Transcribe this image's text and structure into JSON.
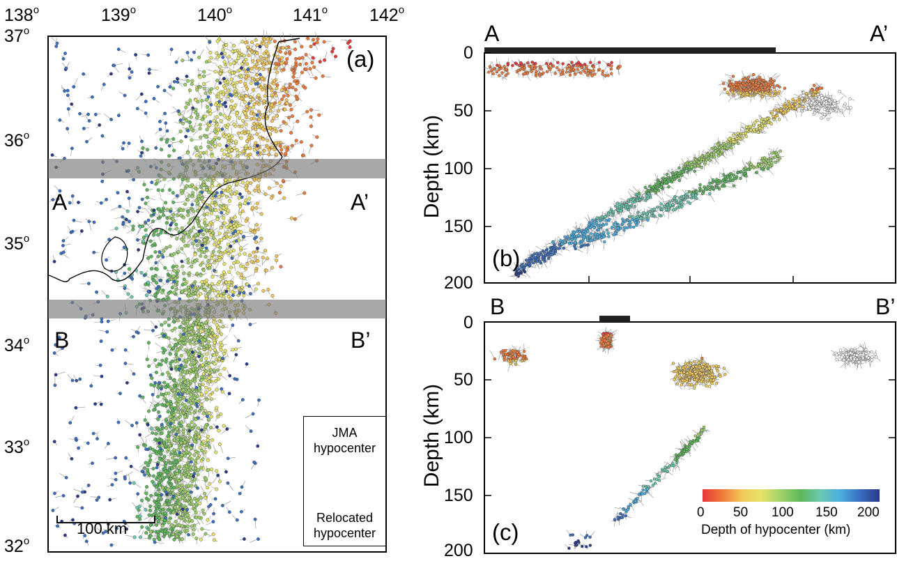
{
  "map": {
    "panel_label": "(a)",
    "lon_ticks": [
      "138",
      "139",
      "140",
      "141",
      "142"
    ],
    "lat_ticks": [
      "37",
      "36",
      "35",
      "34",
      "33",
      "32"
    ],
    "degree_symbol": "o",
    "profile_a_start": "A",
    "profile_a_end": "A’",
    "profile_b_start": "B",
    "profile_b_end": "B’",
    "scale_bar": "100 km",
    "legend": {
      "title_line1": "JMA",
      "title_line2": "hypocenter",
      "bottom_line1": "Relocated",
      "bottom_line2": "hypocenter",
      "marker_color": "#4a78b5"
    }
  },
  "section_b": {
    "panel_label": "(b)",
    "start_label": "A",
    "end_label": "A’",
    "ylabel": "Depth (km)",
    "y_ticks": [
      "0",
      "50",
      "100",
      "150",
      "200"
    ]
  },
  "section_c": {
    "panel_label": "(c)",
    "start_label": "B",
    "end_label": "B’",
    "ylabel": "Depth (km)",
    "y_ticks": [
      "0",
      "50",
      "100",
      "150",
      "200"
    ]
  },
  "colorbar": {
    "title": "Depth of hypocenter (km)",
    "ticks": [
      "0",
      "50",
      "100",
      "150",
      "200"
    ],
    "colors": [
      "#e8393b",
      "#f07a3a",
      "#f2c85a",
      "#e6e46a",
      "#9dd06a",
      "#5cb85a",
      "#6ac8b0",
      "#4aaee0",
      "#3a6ec0",
      "#2a3a8a"
    ]
  },
  "chart_data": [
    {
      "type": "scatter",
      "title": "(a)",
      "xlabel": "",
      "ylabel": "",
      "xlim": [
        138,
        142
      ],
      "ylim": [
        32,
        37
      ],
      "description_units": "longitude / latitude degrees",
      "shaded_bands_lat": [
        [
          35.65,
          35.85
        ],
        [
          34.3,
          34.45
        ]
      ],
      "x": [],
      "y": []
    },
    {
      "type": "scatter",
      "title": "(b)",
      "xlabel": "",
      "ylabel": "Depth (km)",
      "ylim": [
        200,
        0
      ]
    },
    {
      "type": "scatter",
      "title": "(c)",
      "xlabel": "",
      "ylabel": "Depth (km)",
      "ylim": [
        200,
        0
      ]
    }
  ]
}
